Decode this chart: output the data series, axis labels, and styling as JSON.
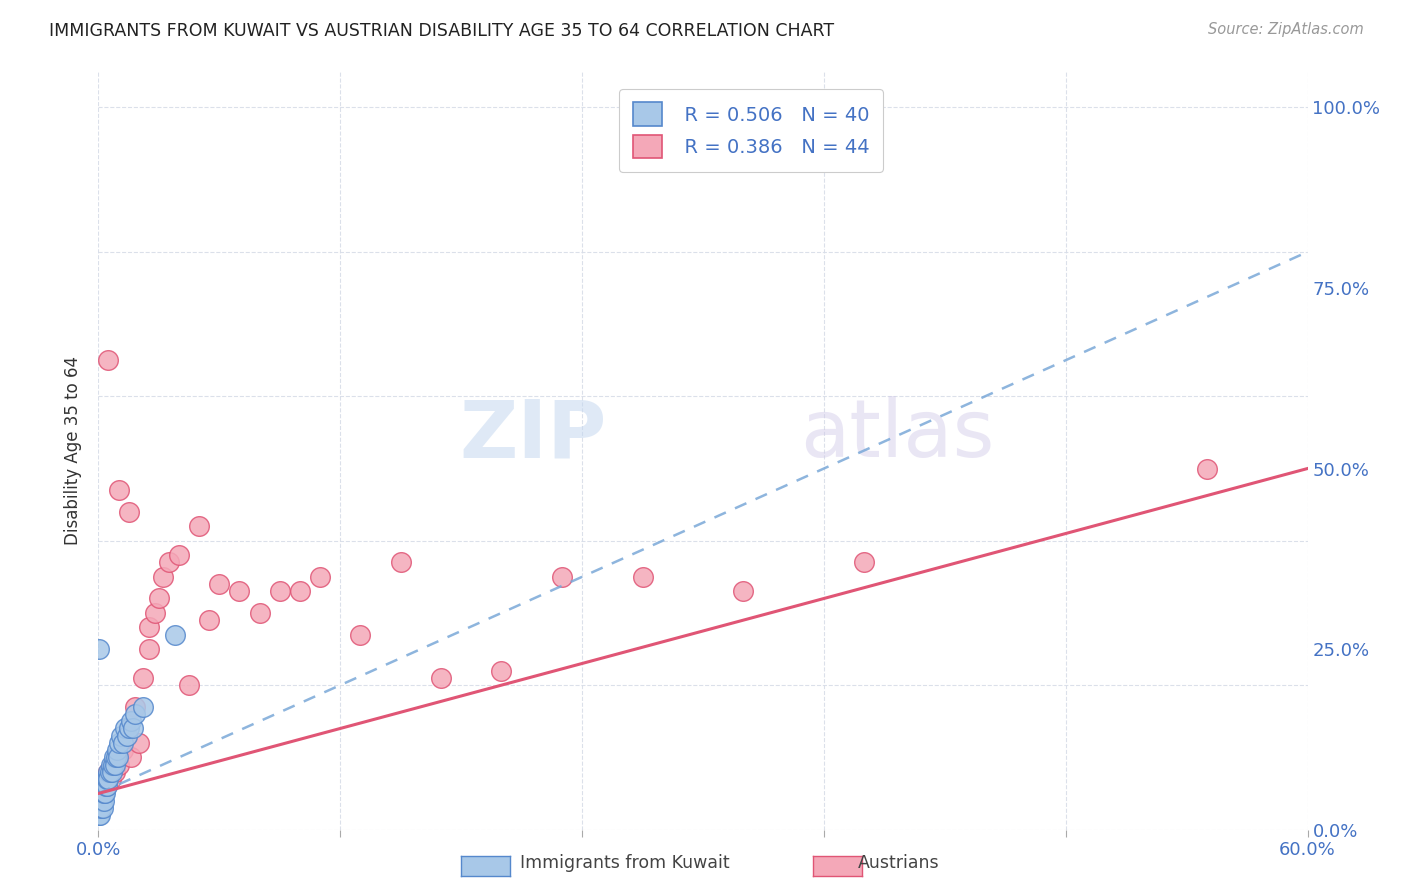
{
  "title": "IMMIGRANTS FROM KUWAIT VS AUSTRIAN DISABILITY AGE 35 TO 64 CORRELATION CHART",
  "source": "Source: ZipAtlas.com",
  "ylabel": "Disability Age 35 to 64",
  "yticks": [
    "0.0%",
    "25.0%",
    "50.0%",
    "75.0%",
    "100.0%"
  ],
  "ytick_vals": [
    0,
    25,
    50,
    75,
    100
  ],
  "xlim": [
    0,
    60
  ],
  "ylim": [
    0,
    105
  ],
  "color_kuwait": "#a8c8e8",
  "color_kuwait_edge": "#5588cc",
  "color_austrians": "#f4a8b8",
  "color_austrians_edge": "#e05575",
  "color_kuwait_line": "#7aa8d8",
  "color_austrians_line": "#e05575",
  "color_axis_text": "#4472c4",
  "grid_color": "#d8dde8",
  "kuwait_x": [
    0.05,
    0.08,
    0.1,
    0.12,
    0.15,
    0.18,
    0.2,
    0.22,
    0.25,
    0.28,
    0.3,
    0.32,
    0.35,
    0.38,
    0.4,
    0.42,
    0.45,
    0.48,
    0.5,
    0.55,
    0.6,
    0.65,
    0.7,
    0.75,
    0.8,
    0.85,
    0.9,
    0.95,
    1.0,
    1.1,
    1.2,
    1.3,
    1.4,
    1.5,
    1.6,
    1.7,
    1.8,
    0.05,
    2.2,
    3.8
  ],
  "kuwait_y": [
    2,
    3,
    2,
    4,
    3,
    4,
    5,
    3,
    5,
    4,
    5,
    6,
    5,
    6,
    7,
    6,
    7,
    8,
    7,
    8,
    9,
    8,
    9,
    10,
    9,
    10,
    11,
    10,
    12,
    13,
    12,
    14,
    13,
    14,
    15,
    14,
    16,
    25,
    17,
    27
  ],
  "austrians_x": [
    0.1,
    0.2,
    0.3,
    0.4,
    0.5,
    0.6,
    0.7,
    0.8,
    0.9,
    1.0,
    1.2,
    1.4,
    1.6,
    1.8,
    2.0,
    2.2,
    2.5,
    2.8,
    3.0,
    3.2,
    3.5,
    4.0,
    4.5,
    5.0,
    5.5,
    6.0,
    7.0,
    8.0,
    9.0,
    10.0,
    11.0,
    13.0,
    15.0,
    17.0,
    20.0,
    23.0,
    27.0,
    32.0,
    38.0,
    55.0,
    1.0,
    1.5,
    2.5,
    0.5
  ],
  "austrians_y": [
    5,
    6,
    7,
    6,
    8,
    7,
    9,
    8,
    10,
    9,
    11,
    13,
    10,
    17,
    12,
    21,
    28,
    30,
    32,
    35,
    37,
    38,
    20,
    42,
    29,
    34,
    33,
    30,
    33,
    33,
    35,
    27,
    37,
    21,
    22,
    35,
    35,
    33,
    37,
    50,
    47,
    44,
    25,
    65
  ],
  "line_kuwait_x0": 0,
  "line_kuwait_y0": 5,
  "line_kuwait_x1": 60,
  "line_kuwait_y1": 80,
  "line_austrians_x0": 0,
  "line_austrians_y0": 5,
  "line_austrians_x1": 60,
  "line_austrians_y1": 50
}
